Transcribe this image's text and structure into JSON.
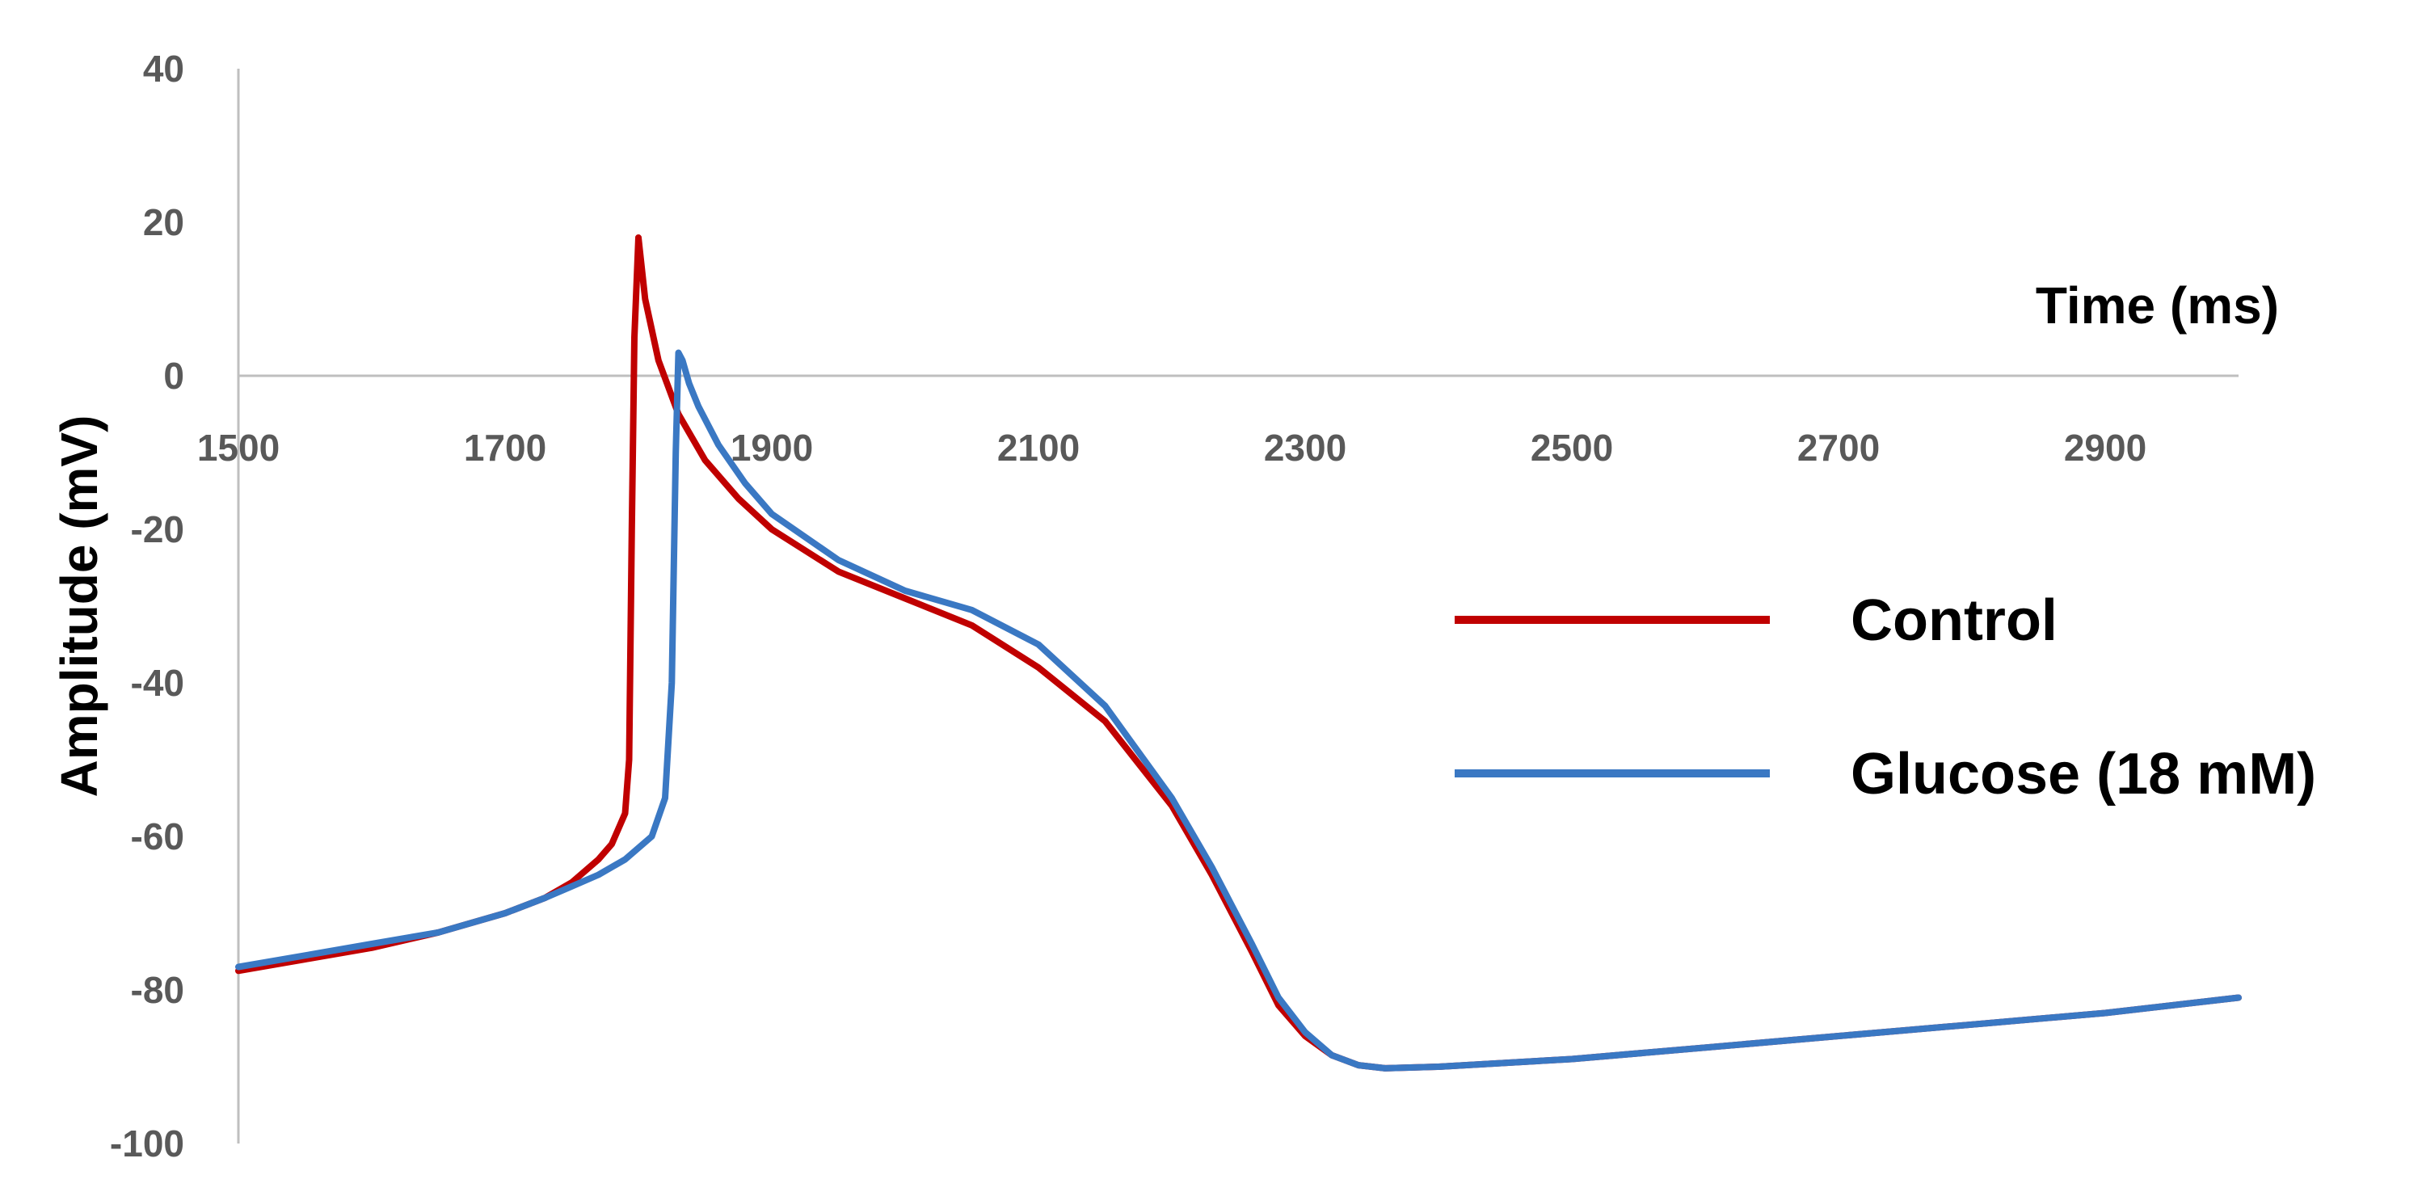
{
  "chart_data": {
    "type": "line",
    "xlabel": "Time (ms)",
    "ylabel": "Amplitude (mV)",
    "xlim": [
      1500,
      3000
    ],
    "ylim": [
      -100,
      40
    ],
    "x_ticks": [
      1500,
      1700,
      1900,
      2100,
      2300,
      2500,
      2700,
      2900
    ],
    "y_ticks": [
      40,
      20,
      0,
      -20,
      -40,
      -60,
      -80,
      -100
    ],
    "x_tick_labels": [
      "1500",
      "1700",
      "1900",
      "2100",
      "2300",
      "2500",
      "2700",
      "2900"
    ],
    "y_tick_labels": [
      "40",
      "20",
      "0",
      "-20",
      "-40",
      "-60",
      "-80",
      "-100"
    ],
    "grid": false,
    "legend_position": "right",
    "series": [
      {
        "name": "Control",
        "color": "#c00000",
        "x": [
          1500,
          1550,
          1600,
          1650,
          1700,
          1730,
          1750,
          1770,
          1780,
          1790,
          1793,
          1795,
          1797,
          1800,
          1805,
          1815,
          1830,
          1850,
          1875,
          1900,
          1950,
          2000,
          2050,
          2100,
          2150,
          2200,
          2230,
          2260,
          2280,
          2300,
          2320,
          2340,
          2360,
          2400,
          2500,
          2600,
          2700,
          2800,
          2900,
          3000
        ],
        "y": [
          -77.5,
          -76,
          -74.5,
          -72.5,
          -70,
          -68,
          -66,
          -63,
          -61,
          -57,
          -50,
          -20,
          5,
          18,
          10,
          2,
          -5,
          -11,
          -16,
          -20,
          -25.5,
          -29,
          -32.5,
          -38,
          -45,
          -56,
          -65,
          -75,
          -82,
          -86,
          -88.5,
          -89.8,
          -90.2,
          -90,
          -89,
          -87.5,
          -86,
          -84.5,
          -83,
          -81
        ]
      },
      {
        "name": "Glucose (18 mM)",
        "color": "#3a78c3",
        "x": [
          1500,
          1550,
          1600,
          1650,
          1700,
          1730,
          1750,
          1770,
          1790,
          1810,
          1820,
          1825,
          1828,
          1830,
          1833,
          1838,
          1845,
          1860,
          1880,
          1900,
          1950,
          2000,
          2050,
          2100,
          2150,
          2200,
          2230,
          2260,
          2280,
          2300,
          2320,
          2340,
          2360,
          2400,
          2500,
          2600,
          2700,
          2800,
          2900,
          3000
        ],
        "y": [
          -77,
          -75.5,
          -74,
          -72.5,
          -70,
          -68,
          -66.5,
          -65,
          -63,
          -60,
          -55,
          -40,
          -10,
          3,
          2,
          -1,
          -4,
          -9,
          -14,
          -18,
          -24,
          -28,
          -30.5,
          -35,
          -43,
          -55,
          -64,
          -74,
          -81,
          -85.5,
          -88.5,
          -89.8,
          -90.2,
          -90,
          -89,
          -87.5,
          -86,
          -84.5,
          -83,
          -81
        ]
      }
    ]
  }
}
